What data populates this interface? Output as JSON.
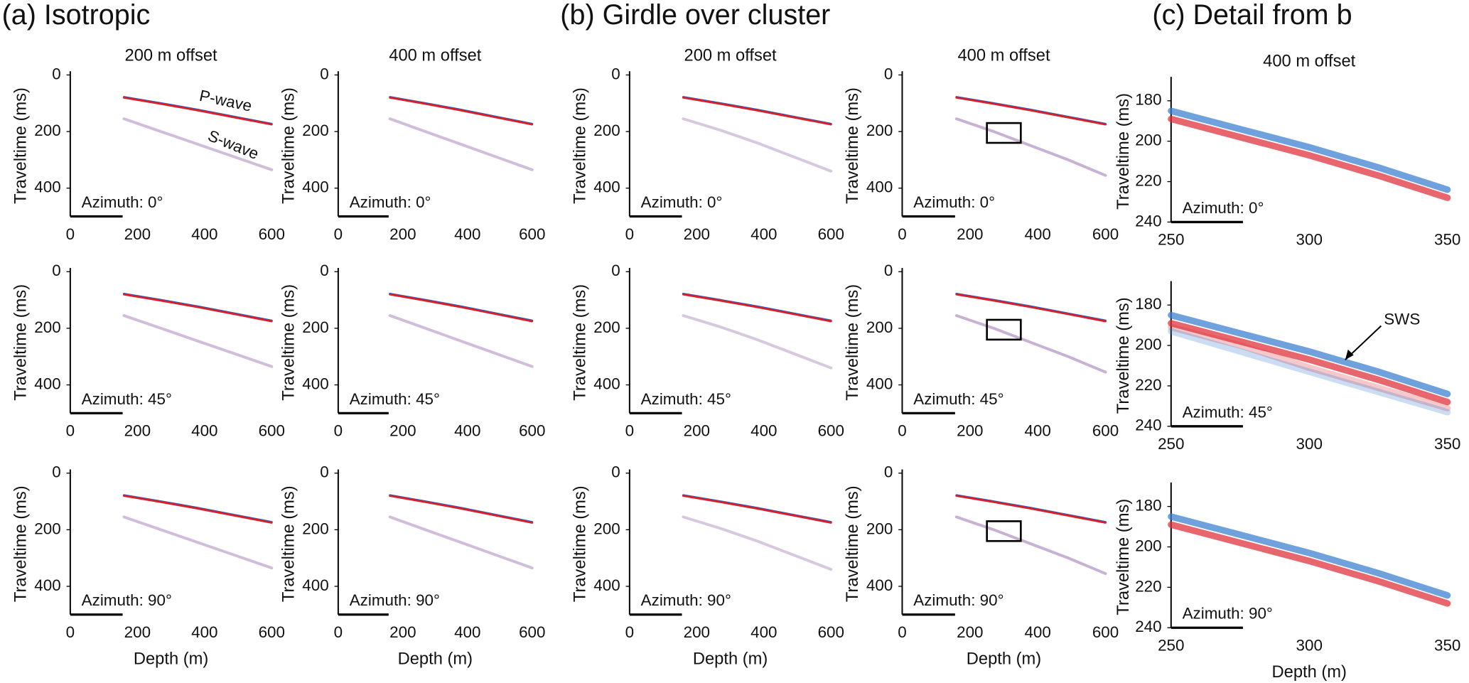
{
  "panel_titles": [
    "(a) Isotropic",
    "(b) Girdle over cluster",
    "(c) Detail from b"
  ],
  "chart_data": [
    {
      "type": "line",
      "title": "200 m offset",
      "ylabel": "Traveltime (ms)",
      "annotation": "Azimuth: 0°",
      "annotations": [
        "P-wave",
        "S-wave"
      ],
      "x": [
        160,
        270,
        380,
        490,
        600
      ],
      "series": [
        {
          "color": "#2060c0",
          "values": [
            78,
            100,
            123,
            148,
            173
          ]
        },
        {
          "color": "#d8202c",
          "values": [
            80,
            102,
            125,
            150,
            175
          ]
        },
        {
          "color": "#8a5aa066",
          "values": [
            155,
            200,
            245,
            290,
            335
          ]
        }
      ],
      "xlim": [
        0,
        600
      ],
      "ylim": [
        0,
        500
      ],
      "xticks": [
        0,
        200,
        400,
        600
      ],
      "yticks": [
        0,
        200,
        400
      ],
      "y_reversed": true
    },
    {
      "type": "line",
      "ylabel": "Traveltime (ms)",
      "annotation": "Azimuth: 45°",
      "x": [
        160,
        270,
        380,
        490,
        600
      ],
      "series": [
        {
          "color": "#2060c0",
          "values": [
            78,
            100,
            123,
            148,
            173
          ]
        },
        {
          "color": "#d8202c",
          "values": [
            80,
            102,
            125,
            150,
            175
          ]
        },
        {
          "color": "#8a5aa066",
          "values": [
            155,
            200,
            245,
            290,
            335
          ]
        }
      ],
      "xlim": [
        0,
        600
      ],
      "ylim": [
        0,
        500
      ],
      "xticks": [
        0,
        200,
        400,
        600
      ],
      "yticks": [
        0,
        200,
        400
      ],
      "y_reversed": true
    },
    {
      "type": "line",
      "ylabel": "Traveltime (ms)",
      "xlabel": "Depth (m)",
      "annotation": "Azimuth: 90°",
      "x": [
        160,
        270,
        380,
        490,
        600
      ],
      "series": [
        {
          "color": "#2060c0",
          "values": [
            78,
            100,
            123,
            148,
            173
          ]
        },
        {
          "color": "#d8202c",
          "values": [
            80,
            102,
            125,
            150,
            175
          ]
        },
        {
          "color": "#8a5aa066",
          "values": [
            155,
            200,
            245,
            290,
            335
          ]
        }
      ],
      "xlim": [
        0,
        600
      ],
      "ylim": [
        0,
        500
      ],
      "xticks": [
        0,
        200,
        400,
        600
      ],
      "yticks": [
        0,
        200,
        400
      ],
      "y_reversed": true
    },
    {
      "type": "line",
      "title": "400 m offset",
      "ylabel": "Traveltime (ms)",
      "annotation": "Azimuth: 0°",
      "x": [
        160,
        270,
        380,
        490,
        600
      ],
      "series": [
        {
          "color": "#2060c0",
          "values": [
            78,
            100,
            123,
            148,
            173
          ]
        },
        {
          "color": "#d8202c",
          "values": [
            80,
            102,
            125,
            150,
            175
          ]
        },
        {
          "color": "#8a5aa066",
          "values": [
            155,
            200,
            245,
            290,
            335
          ]
        }
      ],
      "xlim": [
        0,
        600
      ],
      "ylim": [
        0,
        500
      ],
      "xticks": [
        0,
        200,
        400,
        600
      ],
      "yticks": [
        0,
        200,
        400
      ],
      "y_reversed": true
    },
    {
      "type": "line",
      "ylabel": "Traveltime (ms)",
      "annotation": "Azimuth: 45°",
      "x": [
        160,
        270,
        380,
        490,
        600
      ],
      "series": [
        {
          "color": "#2060c0",
          "values": [
            78,
            100,
            123,
            148,
            173
          ]
        },
        {
          "color": "#d8202c",
          "values": [
            80,
            102,
            125,
            150,
            175
          ]
        },
        {
          "color": "#8a5aa066",
          "values": [
            155,
            200,
            245,
            290,
            335
          ]
        }
      ],
      "xlim": [
        0,
        600
      ],
      "ylim": [
        0,
        500
      ],
      "xticks": [
        0,
        200,
        400,
        600
      ],
      "yticks": [
        0,
        200,
        400
      ],
      "y_reversed": true
    },
    {
      "type": "line",
      "ylabel": "Traveltime (ms)",
      "xlabel": "Depth (m)",
      "annotation": "Azimuth: 90°",
      "x": [
        160,
        270,
        380,
        490,
        600
      ],
      "series": [
        {
          "color": "#2060c0",
          "values": [
            78,
            100,
            123,
            148,
            173
          ]
        },
        {
          "color": "#d8202c",
          "values": [
            80,
            102,
            125,
            150,
            175
          ]
        },
        {
          "color": "#8a5aa066",
          "values": [
            155,
            200,
            245,
            290,
            335
          ]
        }
      ],
      "xlim": [
        0,
        600
      ],
      "ylim": [
        0,
        500
      ],
      "xticks": [
        0,
        200,
        400,
        600
      ],
      "yticks": [
        0,
        200,
        400
      ],
      "y_reversed": true
    },
    {
      "type": "line",
      "title": "200 m offset",
      "ylabel": "Traveltime (ms)",
      "annotation": "Azimuth: 0°",
      "x": [
        160,
        270,
        380,
        490,
        600
      ],
      "series": [
        {
          "color": "#2060c0",
          "values": [
            78,
            100,
            123,
            148,
            173
          ]
        },
        {
          "color": "#d8202c",
          "values": [
            80,
            102,
            125,
            150,
            175
          ]
        },
        {
          "color": "#8a5aa055",
          "values": [
            155,
            195,
            240,
            290,
            340
          ]
        }
      ],
      "xlim": [
        0,
        600
      ],
      "ylim": [
        0,
        500
      ],
      "xticks": [
        0,
        200,
        400,
        600
      ],
      "yticks": [
        0,
        200,
        400
      ],
      "y_reversed": true
    },
    {
      "type": "line",
      "ylabel": "Traveltime (ms)",
      "annotation": "Azimuth: 45°",
      "x": [
        160,
        270,
        380,
        490,
        600
      ],
      "series": [
        {
          "color": "#2060c0",
          "values": [
            78,
            100,
            123,
            148,
            173
          ]
        },
        {
          "color": "#d8202c",
          "values": [
            80,
            102,
            125,
            150,
            175
          ]
        },
        {
          "color": "#8a5aa055",
          "values": [
            155,
            195,
            240,
            290,
            340
          ]
        }
      ],
      "xlim": [
        0,
        600
      ],
      "ylim": [
        0,
        500
      ],
      "xticks": [
        0,
        200,
        400,
        600
      ],
      "yticks": [
        0,
        200,
        400
      ],
      "y_reversed": true
    },
    {
      "type": "line",
      "ylabel": "Traveltime (ms)",
      "xlabel": "Depth (m)",
      "annotation": "Azimuth: 90°",
      "x": [
        160,
        270,
        380,
        490,
        600
      ],
      "series": [
        {
          "color": "#2060c0",
          "values": [
            78,
            100,
            123,
            148,
            173
          ]
        },
        {
          "color": "#d8202c",
          "values": [
            80,
            102,
            125,
            150,
            175
          ]
        },
        {
          "color": "#8a5aa055",
          "values": [
            155,
            195,
            240,
            290,
            340
          ]
        }
      ],
      "xlim": [
        0,
        600
      ],
      "ylim": [
        0,
        500
      ],
      "xticks": [
        0,
        200,
        400,
        600
      ],
      "yticks": [
        0,
        200,
        400
      ],
      "y_reversed": true
    },
    {
      "type": "line",
      "title": "400 m offset",
      "ylabel": "Traveltime (ms)",
      "annotation": "Azimuth: 0°",
      "x": [
        160,
        270,
        380,
        490,
        600
      ],
      "series": [
        {
          "color": "#2060c0",
          "values": [
            78,
            100,
            123,
            148,
            173
          ]
        },
        {
          "color": "#d8202c",
          "values": [
            80,
            102,
            125,
            150,
            175
          ]
        },
        {
          "color": "#8a5aa077",
          "values": [
            155,
            200,
            250,
            300,
            355
          ]
        }
      ],
      "box": {
        "x": [
          250,
          350
        ],
        "y": [
          170,
          240
        ]
      },
      "xlim": [
        0,
        600
      ],
      "ylim": [
        0,
        500
      ],
      "xticks": [
        0,
        200,
        400,
        600
      ],
      "yticks": [
        0,
        200,
        400
      ],
      "y_reversed": true
    },
    {
      "type": "line",
      "ylabel": "Traveltime (ms)",
      "annotation": "Azimuth: 45°",
      "x": [
        160,
        270,
        380,
        490,
        600
      ],
      "series": [
        {
          "color": "#2060c0",
          "values": [
            78,
            100,
            123,
            148,
            173
          ]
        },
        {
          "color": "#d8202c",
          "values": [
            80,
            102,
            125,
            150,
            175
          ]
        },
        {
          "color": "#8a5aa077",
          "values": [
            155,
            200,
            250,
            300,
            355
          ]
        }
      ],
      "box": {
        "x": [
          250,
          350
        ],
        "y": [
          170,
          240
        ]
      },
      "xlim": [
        0,
        600
      ],
      "ylim": [
        0,
        500
      ],
      "xticks": [
        0,
        200,
        400,
        600
      ],
      "yticks": [
        0,
        200,
        400
      ],
      "y_reversed": true
    },
    {
      "type": "line",
      "ylabel": "Traveltime (ms)",
      "xlabel": "Depth (m)",
      "annotation": "Azimuth: 90°",
      "x": [
        160,
        270,
        380,
        490,
        600
      ],
      "series": [
        {
          "color": "#2060c0",
          "values": [
            78,
            100,
            123,
            148,
            173
          ]
        },
        {
          "color": "#d8202c",
          "values": [
            80,
            102,
            125,
            150,
            175
          ]
        },
        {
          "color": "#8a5aa077",
          "values": [
            155,
            200,
            250,
            300,
            355
          ]
        }
      ],
      "box": {
        "x": [
          250,
          350
        ],
        "y": [
          170,
          240
        ]
      },
      "xlim": [
        0,
        600
      ],
      "ylim": [
        0,
        500
      ],
      "xticks": [
        0,
        200,
        400,
        600
      ],
      "yticks": [
        0,
        200,
        400
      ],
      "y_reversed": true
    },
    {
      "type": "line",
      "title": "400 m offset",
      "ylabel": "Traveltime (ms)",
      "annotation": "Azimuth: 0°",
      "x": [
        250,
        275,
        300,
        325,
        350
      ],
      "series": [
        {
          "color": "#3a7fcfbb",
          "values": [
            185,
            194,
            203,
            213,
            224
          ]
        },
        {
          "color": "#e0303abb",
          "values": [
            189,
            198,
            207,
            217,
            228
          ]
        }
      ],
      "xlim": [
        250,
        350
      ],
      "ylim": [
        170,
        240
      ],
      "xticks": [
        250,
        300,
        350
      ],
      "yticks": [
        180,
        200,
        220,
        240
      ],
      "y_reversed": true
    },
    {
      "type": "line",
      "ylabel": "Traveltime (ms)",
      "annotation": "Azimuth: 45°",
      "annotations": [
        "SWS"
      ],
      "x": [
        250,
        275,
        300,
        325,
        350
      ],
      "series": [
        {
          "color": "#3a7fcfbb",
          "values": [
            185,
            194,
            203,
            213,
            224
          ]
        },
        {
          "color": "#e0303abb",
          "values": [
            189,
            198,
            207,
            217,
            228
          ]
        },
        {
          "color": "#e0303a44",
          "values": [
            191,
            200,
            211,
            221,
            231
          ]
        },
        {
          "color": "#3a7fcf44",
          "values": [
            193,
            203,
            213,
            223,
            233
          ]
        }
      ],
      "xlim": [
        250,
        350
      ],
      "ylim": [
        170,
        240
      ],
      "xticks": [
        250,
        300,
        350
      ],
      "yticks": [
        180,
        200,
        220,
        240
      ],
      "y_reversed": true
    },
    {
      "type": "line",
      "ylabel": "Traveltime (ms)",
      "xlabel": "Depth (m)",
      "annotation": "Azimuth: 90°",
      "x": [
        250,
        275,
        300,
        325,
        350
      ],
      "series": [
        {
          "color": "#3a7fcfbb",
          "values": [
            185,
            194,
            203,
            213,
            224
          ]
        },
        {
          "color": "#e0303abb",
          "values": [
            189,
            198,
            207,
            217,
            228
          ]
        }
      ],
      "xlim": [
        250,
        350
      ],
      "ylim": [
        170,
        240
      ],
      "xticks": [
        250,
        300,
        350
      ],
      "yticks": [
        180,
        200,
        220,
        240
      ],
      "y_reversed": true
    }
  ]
}
